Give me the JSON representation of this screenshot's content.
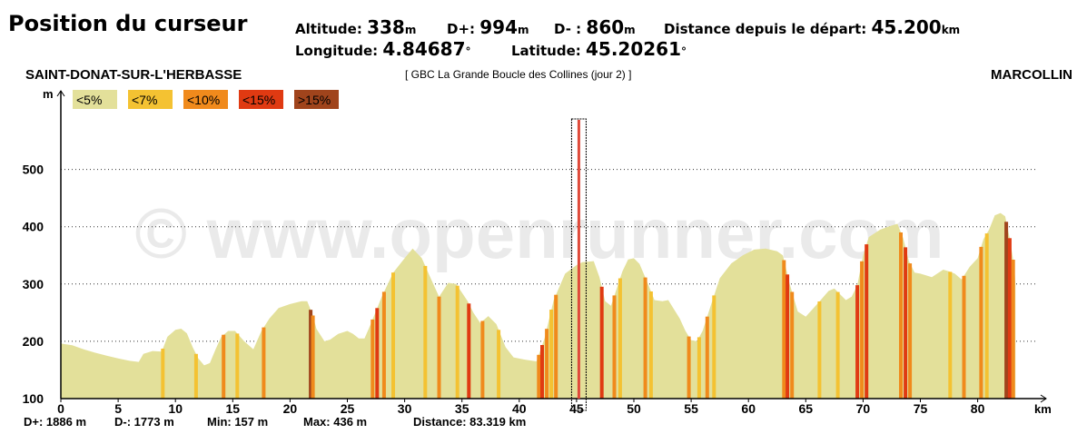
{
  "header": {
    "title": "Position du curseur",
    "altitude_label": "Altitude:",
    "altitude_value": "338",
    "altitude_unit": "m",
    "dplus_label": "D+:",
    "dplus_value": "994",
    "dplus_unit": "m",
    "dminus_label": "D- :",
    "dminus_value": "860",
    "dminus_unit": "m",
    "distance_label": "Distance depuis le départ:",
    "distance_value": "45.200",
    "distance_unit": "km",
    "longitude_label": "Longitude:",
    "longitude_value": "4.84687",
    "longitude_unit": "°",
    "latitude_label": "Latitude:",
    "latitude_value": "45.20261",
    "latitude_unit": "°"
  },
  "route": {
    "start": "SAINT-DONAT-SUR-L'HERBASSE",
    "name": "[ GBC La Grande Boucle des Collines (jour 2) ]",
    "end": "MARCOLLIN"
  },
  "watermark": "© www.openrunner.com",
  "chart_data": {
    "type": "area",
    "xlabel": "km",
    "ylabel": "m",
    "xlim": [
      0,
      85
    ],
    "ylim": [
      100,
      600
    ],
    "x_ticks": [
      0,
      5,
      10,
      15,
      20,
      25,
      30,
      35,
      40,
      45,
      50,
      55,
      60,
      65,
      70,
      75,
      80
    ],
    "y_ticks": [
      100,
      200,
      300,
      400,
      500
    ],
    "gridlines": [
      200,
      300,
      400,
      500
    ],
    "cursor_km": 45.2,
    "legend": [
      {
        "label": "<5%",
        "color": "#e3e09a"
      },
      {
        "label": "<7%",
        "color": "#f4c232"
      },
      {
        "label": "<10%",
        "color": "#f08a1c"
      },
      {
        "label": "<15%",
        "color": "#e03a12"
      },
      {
        "label": ">15%",
        "color": "#a0441c"
      }
    ],
    "profile": [
      [
        0,
        196
      ],
      [
        1,
        193
      ],
      [
        2,
        186
      ],
      [
        3,
        180
      ],
      [
        4,
        175
      ],
      [
        5,
        170
      ],
      [
        6,
        166
      ],
      [
        6.8,
        164
      ],
      [
        7.2,
        178
      ],
      [
        8,
        183
      ],
      [
        8.8,
        182
      ],
      [
        9.3,
        208
      ],
      [
        10,
        220
      ],
      [
        10.5,
        222
      ],
      [
        11,
        214
      ],
      [
        11.5,
        190
      ],
      [
        12,
        170
      ],
      [
        12.5,
        158
      ],
      [
        13,
        162
      ],
      [
        13.5,
        186
      ],
      [
        14,
        208
      ],
      [
        14.6,
        218
      ],
      [
        15.2,
        218
      ],
      [
        16,
        200
      ],
      [
        16.8,
        186
      ],
      [
        17.5,
        218
      ],
      [
        18.2,
        240
      ],
      [
        19,
        258
      ],
      [
        20,
        265
      ],
      [
        21,
        270
      ],
      [
        21.5,
        270
      ],
      [
        22,
        245
      ],
      [
        22.3,
        222
      ],
      [
        23,
        200
      ],
      [
        23.5,
        203
      ],
      [
        24.2,
        213
      ],
      [
        25,
        218
      ],
      [
        25.5,
        213
      ],
      [
        26,
        205
      ],
      [
        26.5,
        205
      ],
      [
        27,
        228
      ],
      [
        28,
        278
      ],
      [
        29,
        320
      ],
      [
        30,
        345
      ],
      [
        30.7,
        362
      ],
      [
        31.5,
        345
      ],
      [
        32.5,
        300
      ],
      [
        33,
        278
      ],
      [
        33.8,
        302
      ],
      [
        34.5,
        300
      ],
      [
        35.5,
        270
      ],
      [
        36,
        250
      ],
      [
        36.6,
        232
      ],
      [
        37.3,
        244
      ],
      [
        38,
        230
      ],
      [
        38.8,
        190
      ],
      [
        39.5,
        172
      ],
      [
        40.5,
        168
      ],
      [
        41.5,
        165
      ],
      [
        42.2,
        205
      ],
      [
        43,
        272
      ],
      [
        44,
        318
      ],
      [
        45,
        333
      ],
      [
        45.5,
        338
      ],
      [
        46,
        339
      ],
      [
        46.5,
        340
      ],
      [
        47,
        312
      ],
      [
        47.5,
        270
      ],
      [
        48,
        262
      ],
      [
        49,
        322
      ],
      [
        49.5,
        343
      ],
      [
        50,
        345
      ],
      [
        50.5,
        335
      ],
      [
        51.2,
        302
      ],
      [
        51.8,
        272
      ],
      [
        52.5,
        270
      ],
      [
        53,
        272
      ],
      [
        53.5,
        256
      ],
      [
        54,
        240
      ],
      [
        54.5,
        218
      ],
      [
        55,
        202
      ],
      [
        55.5,
        200
      ],
      [
        56,
        218
      ],
      [
        56.7,
        262
      ],
      [
        57.5,
        310
      ],
      [
        58.5,
        336
      ],
      [
        59.5,
        350
      ],
      [
        60.5,
        360
      ],
      [
        61.5,
        362
      ],
      [
        62.5,
        357
      ],
      [
        63,
        350
      ],
      [
        63.6,
        300
      ],
      [
        64.3,
        252
      ],
      [
        65,
        243
      ],
      [
        66,
        265
      ],
      [
        67,
        288
      ],
      [
        67.5,
        292
      ],
      [
        68,
        282
      ],
      [
        68.5,
        272
      ],
      [
        69,
        278
      ],
      [
        69.5,
        298
      ],
      [
        70,
        350
      ],
      [
        70.5,
        382
      ],
      [
        71.5,
        395
      ],
      [
        72.5,
        402
      ],
      [
        73,
        405
      ],
      [
        73.5,
        380
      ],
      [
        74,
        340
      ],
      [
        74.5,
        320
      ],
      [
        75,
        318
      ],
      [
        76,
        312
      ],
      [
        77,
        325
      ],
      [
        77.5,
        322
      ],
      [
        78,
        318
      ],
      [
        78.6,
        308
      ],
      [
        79.3,
        330
      ],
      [
        80,
        345
      ],
      [
        80.5,
        378
      ],
      [
        81,
        395
      ],
      [
        81.5,
        420
      ],
      [
        82,
        424
      ],
      [
        82.4,
        418
      ],
      [
        82.8,
        380
      ],
      [
        83.2,
        330
      ],
      [
        83.3,
        300
      ]
    ],
    "steep_segments": [
      {
        "km": 8.9,
        "grade": "<7%"
      },
      {
        "km": 11.8,
        "grade": "<7%"
      },
      {
        "km": 14.2,
        "grade": "<10%"
      },
      {
        "km": 15.4,
        "grade": "<7%"
      },
      {
        "km": 17.7,
        "grade": "<10%"
      },
      {
        "km": 21.8,
        "grade": ">15%"
      },
      {
        "km": 22.0,
        "grade": "<10%"
      },
      {
        "km": 27.2,
        "grade": "<10%"
      },
      {
        "km": 27.6,
        "grade": "<15%"
      },
      {
        "km": 28.2,
        "grade": "<10%"
      },
      {
        "km": 29.0,
        "grade": "<7%"
      },
      {
        "km": 31.8,
        "grade": "<7%"
      },
      {
        "km": 33.0,
        "grade": "<10%"
      },
      {
        "km": 34.6,
        "grade": "<7%"
      },
      {
        "km": 35.6,
        "grade": "<15%"
      },
      {
        "km": 36.8,
        "grade": "<10%"
      },
      {
        "km": 38.2,
        "grade": "<7%"
      },
      {
        "km": 41.7,
        "grade": "<10%"
      },
      {
        "km": 42.0,
        "grade": "<15%"
      },
      {
        "km": 42.4,
        "grade": "<10%"
      },
      {
        "km": 42.8,
        "grade": "<7%"
      },
      {
        "km": 43.2,
        "grade": "<10%"
      },
      {
        "km": 47.2,
        "grade": "<15%"
      },
      {
        "km": 48.3,
        "grade": "<10%"
      },
      {
        "km": 48.8,
        "grade": "<7%"
      },
      {
        "km": 51.0,
        "grade": "<10%"
      },
      {
        "km": 51.5,
        "grade": "<7%"
      },
      {
        "km": 54.8,
        "grade": "<10%"
      },
      {
        "km": 55.7,
        "grade": "<7%"
      },
      {
        "km": 56.4,
        "grade": "<10%"
      },
      {
        "km": 57.0,
        "grade": "<7%"
      },
      {
        "km": 63.1,
        "grade": "<10%"
      },
      {
        "km": 63.4,
        "grade": "<15%"
      },
      {
        "km": 63.8,
        "grade": "<10%"
      },
      {
        "km": 66.2,
        "grade": "<7%"
      },
      {
        "km": 67.8,
        "grade": "<7%"
      },
      {
        "km": 69.5,
        "grade": "<15%"
      },
      {
        "km": 69.9,
        "grade": "<10%"
      },
      {
        "km": 70.3,
        "grade": "<15%"
      },
      {
        "km": 73.3,
        "grade": "<10%"
      },
      {
        "km": 73.7,
        "grade": "<15%"
      },
      {
        "km": 74.1,
        "grade": "<10%"
      },
      {
        "km": 77.6,
        "grade": "<7%"
      },
      {
        "km": 78.8,
        "grade": "<10%"
      },
      {
        "km": 80.3,
        "grade": "<10%"
      },
      {
        "km": 80.8,
        "grade": "<7%"
      },
      {
        "km": 82.5,
        "grade": ">15%"
      },
      {
        "km": 82.8,
        "grade": "<15%"
      },
      {
        "km": 83.1,
        "grade": "<10%"
      }
    ]
  },
  "footer": {
    "dplus": "D+: 1886 m",
    "dminus": "D-: 1773 m",
    "min": "Min: 157 m",
    "max": "Max: 436 m",
    "distance": "Distance: 83.319 km"
  }
}
